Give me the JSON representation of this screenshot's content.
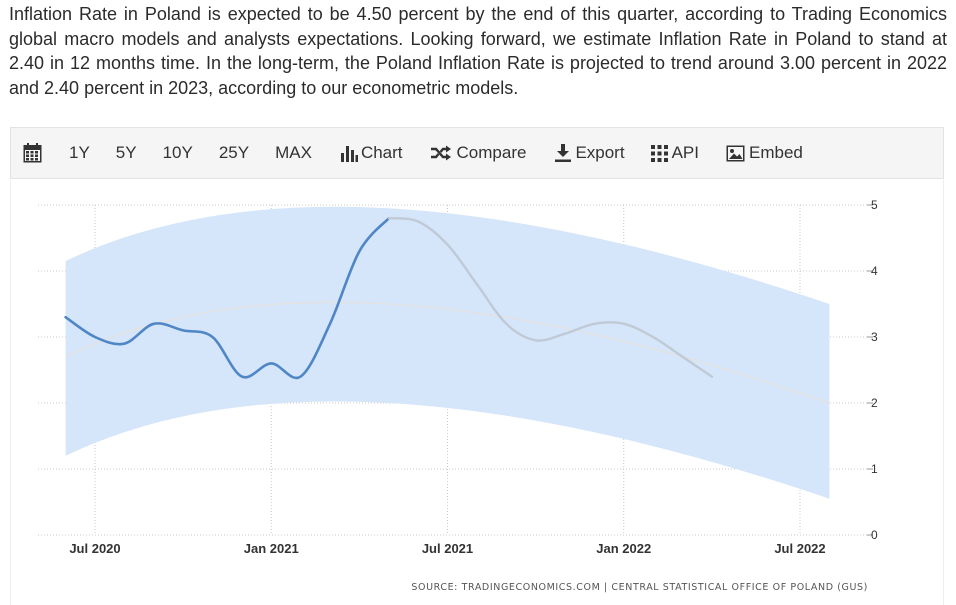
{
  "intro": {
    "text": "Inflation Rate in Poland is expected to be 4.50 percent by the end of this quarter, according to Trading Economics global macro models and analysts expectations. Looking forward, we estimate Inflation Rate in Poland to stand at 2.40 in 12 months time. In the long-term, the Poland Inflation Rate is projected to trend around 3.00 percent in 2022 and 2.40 percent in 2023, according to our econometric models."
  },
  "toolbar": {
    "calendar_icon": "calendar-icon",
    "ranges": [
      "1Y",
      "5Y",
      "10Y",
      "25Y",
      "MAX"
    ],
    "chart_label": "Chart",
    "compare_label": "Compare",
    "export_label": "Export",
    "api_label": "API",
    "embed_label": "Embed"
  },
  "chart_data": {
    "type": "line",
    "title": "",
    "xlabel": "",
    "ylabel": "",
    "x_ticks": [
      "Jul 2020",
      "Jan 2021",
      "Jul 2021",
      "Jan 2022",
      "Jul 2022"
    ],
    "y_ticks": [
      0,
      1,
      2,
      3,
      4,
      5
    ],
    "ylim": [
      0,
      5
    ],
    "y_axis_side": "right",
    "grid": true,
    "legend": "none",
    "colors": {
      "actual": "#4f86c6",
      "forecast": "#c0cad6",
      "band": "#d5e5fa",
      "trend": "#e2e2e2"
    },
    "series": [
      {
        "role": "actual",
        "points": [
          [
            "2020-06",
            3.3
          ],
          [
            "2020-07",
            3.0
          ],
          [
            "2020-08",
            2.9
          ],
          [
            "2020-09",
            3.2
          ],
          [
            "2020-10",
            3.1
          ],
          [
            "2020-11",
            3.0
          ],
          [
            "2020-12",
            2.4
          ],
          [
            "2021-01",
            2.6
          ],
          [
            "2021-02",
            2.4
          ],
          [
            "2021-03",
            3.2
          ],
          [
            "2021-04",
            4.3
          ],
          [
            "2021-05",
            4.8
          ]
        ]
      },
      {
        "role": "forecast",
        "points": [
          [
            "2021-05",
            4.8
          ],
          [
            "2021-06",
            4.75
          ],
          [
            "2021-07",
            4.4
          ],
          [
            "2021-08",
            3.8
          ],
          [
            "2021-09",
            3.2
          ],
          [
            "2021-10",
            2.95
          ],
          [
            "2021-11",
            3.05
          ],
          [
            "2021-12",
            3.2
          ],
          [
            "2022-01",
            3.2
          ],
          [
            "2022-02",
            3.0
          ],
          [
            "2022-03",
            2.7
          ],
          [
            "2022-04",
            2.4
          ]
        ]
      },
      {
        "role": "trend",
        "points": [
          [
            "2020-06",
            2.7
          ],
          [
            "2021-05",
            3.5
          ],
          [
            "2022-08",
            2.0
          ]
        ]
      }
    ],
    "band": {
      "upper": [
        [
          "2020-06",
          4.15
        ],
        [
          "2021-05",
          4.95
        ],
        [
          "2022-08",
          3.5
        ]
      ],
      "lower": [
        [
          "2020-06",
          1.2
        ],
        [
          "2021-05",
          2.0
        ],
        [
          "2022-08",
          0.55
        ]
      ]
    },
    "source": "SOURCE: TRADINGECONOMICS.COM | CENTRAL STATISTICAL OFFICE OF POLAND (GUS)"
  }
}
